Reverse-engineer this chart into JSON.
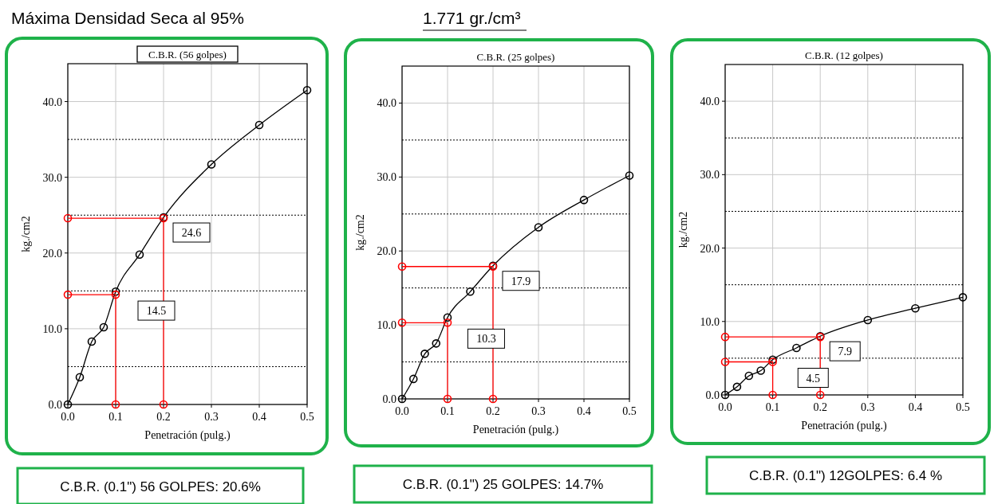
{
  "chart_data": [
    {
      "type": "line",
      "title": "C.B.R. (56 golpes)",
      "xlabel": "Penetración (pulg.)",
      "ylabel": "kg./cm2",
      "xlim": [
        0,
        0.5
      ],
      "ylim": [
        0,
        45
      ],
      "xticks": [
        {
          "value": 0,
          "label": "0.0"
        },
        {
          "value": 0.1,
          "label": "0.1"
        },
        {
          "value": 0.2,
          "label": "0.2"
        },
        {
          "value": 0.3,
          "label": "0.3"
        },
        {
          "value": 0.4,
          "label": "0.4"
        },
        {
          "value": 0.5,
          "label": "0.5"
        }
      ],
      "yticks": [
        {
          "value": 0,
          "label": "0.0"
        },
        {
          "value": 10,
          "label": "10.0"
        },
        {
          "value": 20,
          "label": "20.0"
        },
        {
          "value": 30,
          "label": "30.0"
        },
        {
          "value": 40,
          "label": "40.0"
        }
      ],
      "grid": true,
      "marker": "circle",
      "series": [
        {
          "color": "#000000",
          "x": [
            0,
            0.025,
            0.05,
            0.075,
            0.1,
            0.15,
            0.2,
            0.3,
            0.4,
            0.5
          ],
          "values": [
            0,
            3.6,
            8.3,
            10.2,
            14.9,
            19.8,
            24.7,
            31.7,
            36.9,
            41.5
          ]
        },
        {
          "color": "#ff0000",
          "x": [
            0,
            0.2,
            0.2
          ],
          "values": [
            24.6,
            24.6,
            0
          ]
        },
        {
          "color": "#ff0000",
          "x": [
            0,
            0.1,
            0.1
          ],
          "values": [
            14.5,
            14.5,
            0
          ]
        }
      ],
      "ref_lines": [
        {
          "axis": "y",
          "value": 5,
          "color": "#000000",
          "line_style": "dotted"
        },
        {
          "axis": "y",
          "value": 15,
          "color": "#000000",
          "line_style": "dotted"
        },
        {
          "axis": "y",
          "value": 25,
          "color": "#000000",
          "line_style": "dotted"
        },
        {
          "axis": "y",
          "value": 35,
          "color": "#000000",
          "line_style": "dotted"
        }
      ],
      "annotations": [
        "Máxima Densidad Seca al 95%",
        "24.6",
        "14.5",
        "C.B.R. (0.1\") 56 GOLPES: 20.6%"
      ]
    },
    {
      "type": "line",
      "title": "C.B.R. (25 golpes)",
      "xlabel": "Penetración (pulg.)",
      "ylabel": "kg./cm2",
      "xlim": [
        0,
        0.5
      ],
      "ylim": [
        0,
        45
      ],
      "xticks": [
        {
          "value": 0,
          "label": "0.0"
        },
        {
          "value": 0.1,
          "label": "0.1"
        },
        {
          "value": 0.2,
          "label": "0.2"
        },
        {
          "value": 0.3,
          "label": "0.3"
        },
        {
          "value": 0.4,
          "label": "0.4"
        },
        {
          "value": 0.5,
          "label": "0.5"
        }
      ],
      "yticks": [
        {
          "value": 0,
          "label": "0.0"
        },
        {
          "value": 10,
          "label": "10.0"
        },
        {
          "value": 20,
          "label": "20.0"
        },
        {
          "value": 30,
          "label": "30.0"
        },
        {
          "value": 40,
          "label": "40.0"
        }
      ],
      "grid": true,
      "marker": "circle",
      "series": [
        {
          "color": "#000000",
          "x": [
            0,
            0.025,
            0.05,
            0.075,
            0.1,
            0.15,
            0.2,
            0.3,
            0.4,
            0.5
          ],
          "values": [
            0,
            2.7,
            6.1,
            7.5,
            11.0,
            14.5,
            18.0,
            23.2,
            26.9,
            30.2
          ]
        },
        {
          "color": "#ff0000",
          "x": [
            0,
            0.2,
            0.2
          ],
          "values": [
            17.9,
            17.9,
            0
          ]
        },
        {
          "color": "#ff0000",
          "x": [
            0,
            0.1,
            0.1
          ],
          "values": [
            10.3,
            10.3,
            0
          ]
        }
      ],
      "ref_lines": [
        {
          "axis": "y",
          "value": 5,
          "color": "#000000",
          "line_style": "dotted"
        },
        {
          "axis": "y",
          "value": 15,
          "color": "#000000",
          "line_style": "dotted"
        },
        {
          "axis": "y",
          "value": 25,
          "color": "#000000",
          "line_style": "dotted"
        },
        {
          "axis": "y",
          "value": 35,
          "color": "#000000",
          "line_style": "dotted"
        }
      ],
      "annotations": [
        "1.771 gr./cm³",
        "17.9",
        "10.3",
        "C.B.R. (0.1\") 25 GOLPES: 14.7%"
      ]
    },
    {
      "type": "line",
      "title": "C.B.R. (12 golpes)",
      "xlabel": "Penetración (pulg.)",
      "ylabel": "kg./cm2",
      "xlim": [
        0,
        0.5
      ],
      "ylim": [
        0,
        45
      ],
      "xticks": [
        {
          "value": 0,
          "label": "0.0"
        },
        {
          "value": 0.1,
          "label": "0.1"
        },
        {
          "value": 0.2,
          "label": "0.2"
        },
        {
          "value": 0.3,
          "label": "0.3"
        },
        {
          "value": 0.4,
          "label": "0.4"
        },
        {
          "value": 0.5,
          "label": "0.5"
        }
      ],
      "yticks": [
        {
          "value": 0,
          "label": "0.0"
        },
        {
          "value": 10,
          "label": "10.0"
        },
        {
          "value": 20,
          "label": "20.0"
        },
        {
          "value": 30,
          "label": "30.0"
        },
        {
          "value": 40,
          "label": "40.0"
        }
      ],
      "grid": true,
      "marker": "circle",
      "series": [
        {
          "color": "#000000",
          "x": [
            0,
            0.025,
            0.05,
            0.075,
            0.1,
            0.15,
            0.2,
            0.3,
            0.4,
            0.5
          ],
          "values": [
            0,
            1.1,
            2.6,
            3.3,
            4.8,
            6.4,
            8.0,
            10.2,
            11.8,
            13.3
          ]
        },
        {
          "color": "#ff0000",
          "x": [
            0,
            0.2,
            0.2
          ],
          "values": [
            7.9,
            7.9,
            0
          ]
        },
        {
          "color": "#ff0000",
          "x": [
            0,
            0.1,
            0.1
          ],
          "values": [
            4.5,
            4.5,
            0
          ]
        }
      ],
      "ref_lines": [
        {
          "axis": "y",
          "value": 5,
          "color": "#000000",
          "line_style": "dotted"
        },
        {
          "axis": "y",
          "value": 15,
          "color": "#000000",
          "line_style": "dotted"
        },
        {
          "axis": "y",
          "value": 25,
          "color": "#000000",
          "line_style": "dotted"
        },
        {
          "axis": "y",
          "value": 35,
          "color": "#000000",
          "line_style": "dotted"
        }
      ],
      "annotations": [
        "7.9",
        "4.5",
        "C.B.R. (0.1\") 12GOLPES: 6.4 %"
      ]
    }
  ]
}
